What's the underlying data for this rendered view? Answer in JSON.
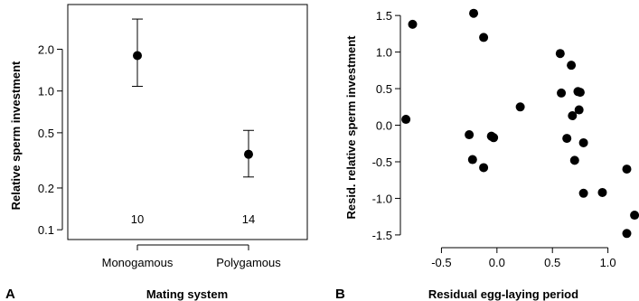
{
  "chart_data": [
    {
      "type": "scatter",
      "panel": "A",
      "xlabel": "Mating system",
      "ylabel": "Relative sperm investment",
      "y_scale": "log",
      "ylim": [
        0.085,
        4.2
      ],
      "y_ticks": [
        {
          "value": 0.1,
          "label": "0.1"
        },
        {
          "value": 0.2,
          "label": "0.2"
        },
        {
          "value": 0.5,
          "label": "0.5"
        },
        {
          "value": 1.0,
          "label": "1.0"
        },
        {
          "value": 2.0,
          "label": "2.0"
        }
      ],
      "categories": [
        "Monogamous",
        "Polygamous"
      ],
      "points": [
        {
          "category": "Monogamous",
          "mean": 1.8,
          "lower": 1.08,
          "upper": 3.3,
          "n": "10"
        },
        {
          "category": "Polygamous",
          "mean": 0.35,
          "lower": 0.24,
          "upper": 0.52,
          "n": "14"
        }
      ],
      "frame": "box",
      "grid": false,
      "colors": {
        "points": "#000000"
      }
    },
    {
      "type": "scatter",
      "panel": "B",
      "xlabel": "Residual egg-laying period",
      "ylabel": "Resid. relative sperm investment",
      "xlim": [
        -0.87,
        1.28
      ],
      "ylim": [
        -1.6,
        1.65
      ],
      "x_ticks": [
        {
          "value": -0.5,
          "label": "-0.5"
        },
        {
          "value": 0.0,
          "label": "0.0"
        },
        {
          "value": 0.5,
          "label": "0.5"
        },
        {
          "value": 1.0,
          "label": "1.0"
        }
      ],
      "y_ticks": [
        {
          "value": -1.5,
          "label": "-1.5"
        },
        {
          "value": -1.0,
          "label": "-1.0"
        },
        {
          "value": -0.5,
          "label": "-0.5"
        },
        {
          "value": 0.0,
          "label": "0.0"
        },
        {
          "value": 0.5,
          "label": "0.5"
        },
        {
          "value": 1.0,
          "label": "1.0"
        },
        {
          "value": 1.5,
          "label": "1.5"
        }
      ],
      "x": [
        -0.82,
        -0.76,
        -0.25,
        -0.22,
        -0.21,
        -0.12,
        -0.12,
        -0.05,
        -0.03,
        0.21,
        0.57,
        0.58,
        0.63,
        0.67,
        0.68,
        0.7,
        0.73,
        0.74,
        0.75,
        0.78,
        0.78,
        0.95,
        1.17,
        1.17,
        1.24
      ],
      "y": [
        0.08,
        1.38,
        -0.13,
        -0.47,
        1.53,
        1.2,
        -0.58,
        -0.15,
        -0.17,
        0.25,
        0.98,
        0.44,
        -0.18,
        0.82,
        0.13,
        -0.48,
        0.46,
        0.21,
        0.45,
        -0.24,
        -0.93,
        -0.92,
        -0.6,
        -1.48,
        -1.23
      ],
      "frame": "axes-only",
      "grid": false,
      "colors": {
        "points": "#000000"
      }
    }
  ]
}
